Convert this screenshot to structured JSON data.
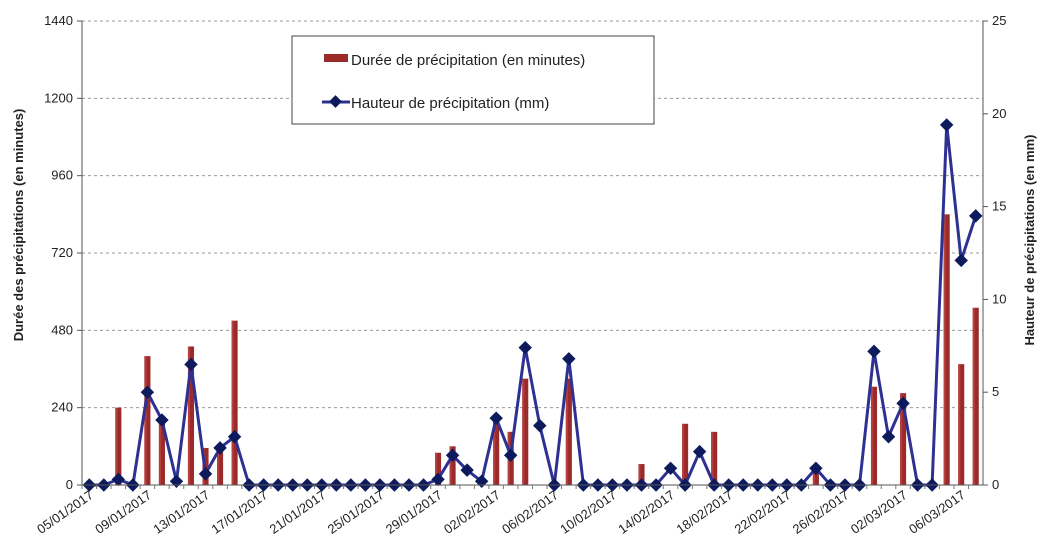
{
  "chart_data": {
    "type": "bar+line",
    "title": "",
    "x": [
      "05/01/2017",
      "06/01/2017",
      "07/01/2017",
      "08/01/2017",
      "09/01/2017",
      "10/01/2017",
      "11/01/2017",
      "12/01/2017",
      "13/01/2017",
      "14/01/2017",
      "15/01/2017",
      "16/01/2017",
      "17/01/2017",
      "18/01/2017",
      "19/01/2017",
      "20/01/2017",
      "21/01/2017",
      "22/01/2017",
      "23/01/2017",
      "24/01/2017",
      "25/01/2017",
      "26/01/2017",
      "27/01/2017",
      "28/01/2017",
      "29/01/2017",
      "30/01/2017",
      "31/01/2017",
      "01/02/2017",
      "02/02/2017",
      "03/02/2017",
      "04/02/2017",
      "05/02/2017",
      "06/02/2017",
      "07/02/2017",
      "08/02/2017",
      "09/02/2017",
      "10/02/2017",
      "11/02/2017",
      "12/02/2017",
      "13/02/2017",
      "14/02/2017",
      "15/02/2017",
      "16/02/2017",
      "17/02/2017",
      "18/02/2017",
      "19/02/2017",
      "20/02/2017",
      "21/02/2017",
      "22/02/2017",
      "23/02/2017",
      "24/02/2017",
      "25/02/2017",
      "26/02/2017",
      "27/02/2017",
      "28/02/2017",
      "01/03/2017",
      "02/03/2017",
      "03/03/2017",
      "04/03/2017",
      "05/03/2017",
      "06/03/2017",
      "07/03/2017"
    ],
    "x_tick_labels": [
      "05/01/2017",
      "09/01/2017",
      "13/01/2017",
      "17/01/2017",
      "21/01/2017",
      "25/01/2017",
      "29/01/2017",
      "02/02/2017",
      "06/02/2017",
      "10/02/2017",
      "14/02/2017",
      "18/02/2017",
      "22/02/2017",
      "26/02/2017",
      "02/03/2017",
      "06/03/2017"
    ],
    "x_tick_every": 4,
    "series": [
      {
        "name": "Durée de précipitation (en minutes)",
        "type": "bar",
        "axis": "left",
        "color": "#9B2A2A",
        "values": [
          0,
          0,
          240,
          0,
          400,
          210,
          0,
          430,
          115,
          110,
          510,
          0,
          0,
          0,
          0,
          0,
          0,
          0,
          0,
          0,
          0,
          0,
          0,
          0,
          100,
          120,
          0,
          0,
          210,
          165,
          330,
          0,
          0,
          330,
          0,
          0,
          0,
          0,
          65,
          0,
          0,
          190,
          0,
          165,
          0,
          0,
          0,
          0,
          0,
          0,
          55,
          0,
          0,
          0,
          305,
          0,
          285,
          0,
          0,
          840,
          375,
          550
        ]
      },
      {
        "name": "Hauteur de précipitation (mm)",
        "type": "line",
        "axis": "right",
        "color": "#2E3192",
        "values": [
          0,
          0,
          0.3,
          0,
          5,
          3.5,
          0.2,
          6.5,
          0.6,
          2,
          2.6,
          0,
          0,
          0,
          0,
          0,
          0,
          0,
          0,
          0,
          0,
          0,
          0,
          0,
          0.3,
          1.6,
          0.8,
          0.2,
          3.6,
          1.6,
          7.4,
          3.2,
          0,
          6.8,
          0,
          0,
          0,
          0,
          0,
          0,
          0.9,
          0,
          1.8,
          0,
          0,
          0,
          0,
          0,
          0,
          0,
          0.9,
          0,
          0,
          0,
          7.2,
          2.6,
          4.4,
          0,
          0,
          19.4,
          12.1,
          14.5
        ]
      }
    ],
    "ylabel_left": "Durée des précipitations (en minutes)",
    "ylabel_right": "Hauteur de précipitations (en mm)",
    "ylim_left": [
      0,
      1440
    ],
    "yticks_left": [
      0,
      240,
      480,
      720,
      960,
      1200,
      1440
    ],
    "ylim_right": [
      0,
      25
    ],
    "yticks_right": [
      0,
      5,
      10,
      15,
      20,
      25
    ],
    "grid": true,
    "legend_position": "top-center"
  }
}
